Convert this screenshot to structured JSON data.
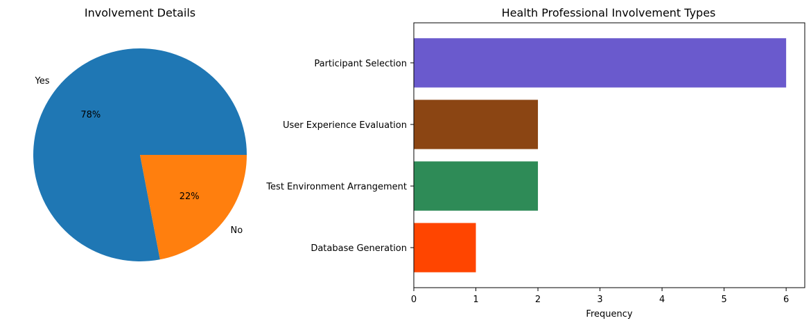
{
  "chart_data": [
    {
      "type": "pie",
      "title": "Involvement Details",
      "slices": [
        {
          "label": "Yes",
          "value": 78,
          "pct_label": "78%",
          "color": "#1f77b4"
        },
        {
          "label": "No",
          "value": 22,
          "pct_label": "22%",
          "color": "#ff7f0e"
        }
      ]
    },
    {
      "type": "bar",
      "orientation": "horizontal",
      "title": "Health Professional Involvement Types",
      "xlabel": "Frequency",
      "ylabel": "",
      "xlim": [
        0,
        6.3
      ],
      "xticks": [
        "0",
        "1",
        "2",
        "3",
        "4",
        "5",
        "6"
      ],
      "grid": false,
      "categories": [
        "Participant Selection",
        "User Experience Evaluation",
        "Test Environment Arrangement",
        "Database Generation"
      ],
      "values": [
        6,
        2,
        2,
        1
      ],
      "colors": [
        "#6a5acd",
        "#8b4513",
        "#2e8b57",
        "#ff4500"
      ]
    }
  ]
}
